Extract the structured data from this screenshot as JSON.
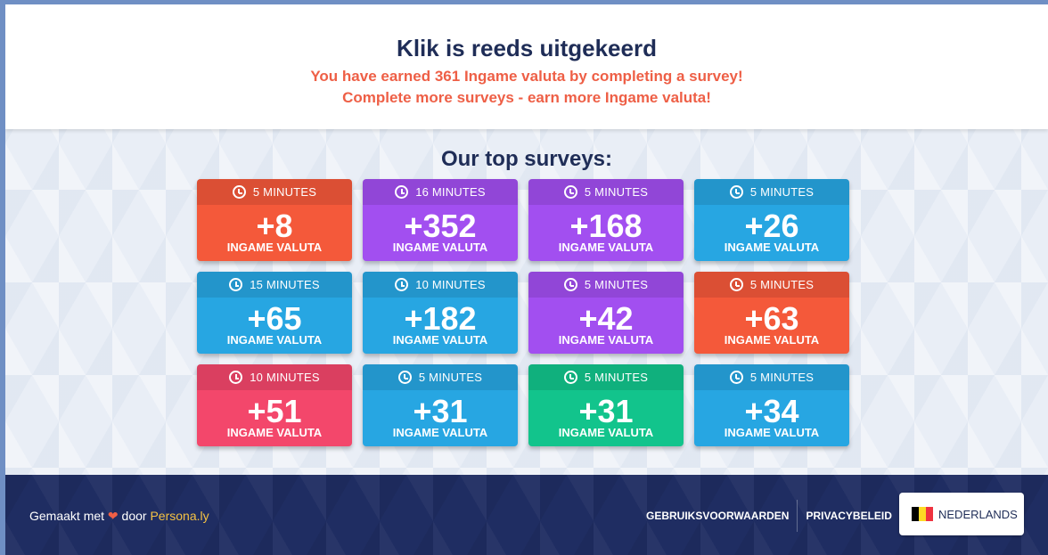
{
  "header": {
    "title": "Klik is reeds uitgekeerd",
    "line1": "You have earned 361 Ingame valuta by completing a survey!",
    "line2": "Complete more surveys - earn more Ingame valuta!"
  },
  "surveys_title": "Our top surveys:",
  "colors": {
    "orange": "#f4593a",
    "purple": "#a24ff0",
    "blue": "#27a6e2",
    "pink": "#f3476b",
    "green": "#12c48c"
  },
  "surveys": [
    {
      "time": "5 MINUTES",
      "amount": "+8",
      "unit": "INGAME VALUTA",
      "color": "#f4593a"
    },
    {
      "time": "16 MINUTES",
      "amount": "+352",
      "unit": "INGAME VALUTA",
      "color": "#a24ff0"
    },
    {
      "time": "5 MINUTES",
      "amount": "+168",
      "unit": "INGAME VALUTA",
      "color": "#a24ff0"
    },
    {
      "time": "5 MINUTES",
      "amount": "+26",
      "unit": "INGAME VALUTA",
      "color": "#27a6e2"
    },
    {
      "time": "15 MINUTES",
      "amount": "+65",
      "unit": "INGAME VALUTA",
      "color": "#27a6e2"
    },
    {
      "time": "10 MINUTES",
      "amount": "+182",
      "unit": "INGAME VALUTA",
      "color": "#27a6e2"
    },
    {
      "time": "5 MINUTES",
      "amount": "+42",
      "unit": "INGAME VALUTA",
      "color": "#a24ff0"
    },
    {
      "time": "5 MINUTES",
      "amount": "+63",
      "unit": "INGAME VALUTA",
      "color": "#f4593a"
    },
    {
      "time": "10 MINUTES",
      "amount": "+51",
      "unit": "INGAME VALUTA",
      "color": "#f3476b"
    },
    {
      "time": "5 MINUTES",
      "amount": "+31",
      "unit": "INGAME VALUTA",
      "color": "#27a6e2"
    },
    {
      "time": "5 MINUTES",
      "amount": "+31",
      "unit": "INGAME VALUTA",
      "color": "#12c48c"
    },
    {
      "time": "5 MINUTES",
      "amount": "+34",
      "unit": "INGAME VALUTA",
      "color": "#27a6e2"
    }
  ],
  "footer": {
    "made_prefix": "Gemaakt met",
    "made_by": "door",
    "brand": "Persona.ly",
    "terms": "GEBRUIKSVOORWAARDEN",
    "privacy": "PRIVACYBELEID",
    "language": "NEDERLANDS"
  },
  "icons": {
    "clock": "clock-icon",
    "heart": "heart-icon",
    "flag": "belgium-flag-icon"
  }
}
